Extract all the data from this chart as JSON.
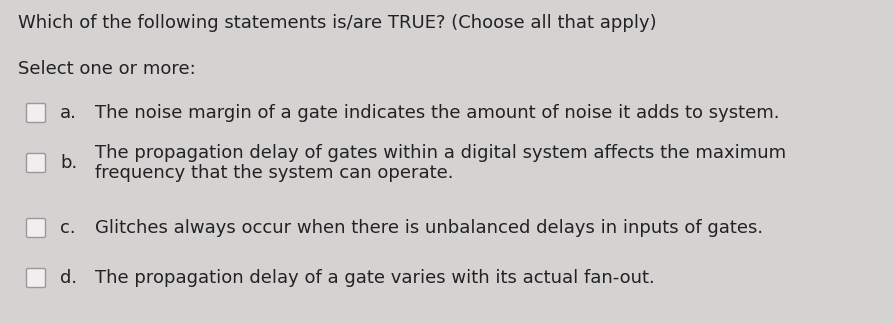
{
  "background_color": "#d5d2d2",
  "title": "Which of the following statements is/are TRUE? (Choose all that apply)",
  "subtitle": "Select one or more:",
  "options": [
    {
      "label": "a.",
      "text": "The noise margin of a gate indicates the amount of noise it adds to system.",
      "multiline": false
    },
    {
      "label": "b.",
      "text_lines": [
        "The propagation delay of gates within a digital system affects the maximum",
        "frequency that the system can operate."
      ],
      "multiline": true
    },
    {
      "label": "c.",
      "text": "Glitches always occur when there is unbalanced delays in inputs of gates.",
      "multiline": false
    },
    {
      "label": "d.",
      "text": "The propagation delay of a gate varies with its actual fan-out.",
      "multiline": false
    }
  ],
  "title_fontsize": 13.0,
  "subtitle_fontsize": 13.0,
  "option_fontsize": 13.0,
  "text_color": "#222222",
  "checkbox_color": "#f0eeee",
  "checkbox_edge_color": "#999999",
  "font_family": "DejaVu Sans"
}
